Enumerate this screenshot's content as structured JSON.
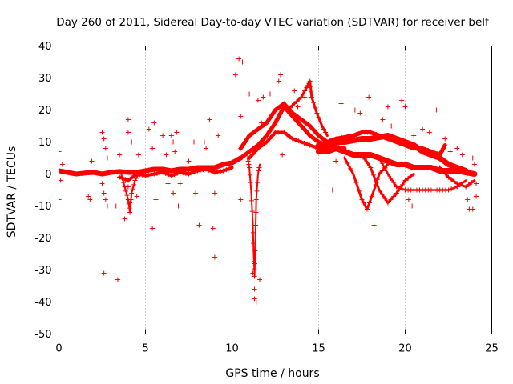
{
  "chart_data": {
    "type": "scatter",
    "title": "Day 260 of 2011, Sidereal Day-to-day VTEC variation (SDTVAR) for receiver belf",
    "xlabel": "GPS time / hours",
    "ylabel": "SDTVAR / TECUs",
    "xlim": [
      0,
      25
    ],
    "ylim": [
      -50,
      40
    ],
    "xticks": [
      0,
      5,
      10,
      15,
      20,
      25
    ],
    "yticks": [
      -50,
      -40,
      -30,
      -20,
      -10,
      0,
      10,
      20,
      30,
      40
    ],
    "xtick_labels": [
      "0",
      "5",
      "10",
      "15",
      "20",
      "25"
    ],
    "ytick_labels": [
      "-50",
      "-40",
      "-30",
      "-20",
      "-10",
      "0",
      "10",
      "20",
      "30",
      "40"
    ],
    "grid": true,
    "marker": "+",
    "color": "#ff0000",
    "dense_traces": [
      {
        "name": "baseline-early",
        "width": 6,
        "points": [
          [
            0,
            1
          ],
          [
            0.5,
            0.5
          ],
          [
            1,
            0
          ],
          [
            1.5,
            0.3
          ],
          [
            2,
            0.5
          ],
          [
            2.5,
            0
          ],
          [
            3,
            0.5
          ],
          [
            3.5,
            0.8
          ],
          [
            4,
            0.5
          ],
          [
            4.5,
            0.5
          ],
          [
            5,
            1
          ],
          [
            5.5,
            1.5
          ],
          [
            6,
            1.5
          ],
          [
            6.5,
            1
          ],
          [
            7,
            1.5
          ],
          [
            7.5,
            1.5
          ],
          [
            8,
            2
          ],
          [
            8.5,
            2
          ],
          [
            9,
            2
          ],
          [
            9.5,
            3
          ],
          [
            10,
            3.5
          ],
          [
            10.5,
            5
          ]
        ]
      },
      {
        "name": "baseline-spread",
        "width": 4,
        "points": [
          [
            3.5,
            -1
          ],
          [
            4,
            -2
          ],
          [
            4.5,
            0
          ],
          [
            5,
            -0.5
          ],
          [
            5.5,
            0
          ],
          [
            6,
            0.5
          ],
          [
            6.5,
            -0.5
          ],
          [
            7,
            0.5
          ],
          [
            7.5,
            0
          ],
          [
            8,
            1
          ],
          [
            8.5,
            1.5
          ],
          [
            9,
            0.5
          ],
          [
            9.5,
            1
          ],
          [
            10,
            2
          ]
        ]
      },
      {
        "name": "rise-a",
        "width": 5,
        "points": [
          [
            10.5,
            5
          ],
          [
            11,
            7
          ],
          [
            11.5,
            9
          ],
          [
            12,
            12
          ],
          [
            12.5,
            16
          ],
          [
            12.8,
            19
          ],
          [
            13,
            21
          ],
          [
            13.5,
            18
          ],
          [
            14,
            15
          ],
          [
            14.5,
            12
          ],
          [
            15,
            10
          ],
          [
            15.5,
            9
          ],
          [
            16,
            8.5
          ],
          [
            16.5,
            8
          ]
        ]
      },
      {
        "name": "rise-b",
        "width": 5,
        "points": [
          [
            10.5,
            8
          ],
          [
            11,
            12
          ],
          [
            11.5,
            14
          ],
          [
            12,
            16
          ],
          [
            12.5,
            20
          ],
          [
            13,
            22
          ],
          [
            13.5,
            19
          ],
          [
            14,
            17
          ],
          [
            14.5,
            15
          ],
          [
            15,
            12
          ],
          [
            15.5,
            10
          ]
        ]
      },
      {
        "name": "rise-c",
        "width": 4,
        "points": [
          [
            11,
            5
          ],
          [
            11.5,
            8
          ],
          [
            12,
            10
          ],
          [
            12.5,
            13
          ],
          [
            13,
            13
          ],
          [
            13.5,
            11
          ],
          [
            14,
            10
          ],
          [
            14.5,
            9
          ],
          [
            15,
            8
          ],
          [
            15.5,
            8
          ]
        ]
      },
      {
        "name": "peak-b",
        "width": 3,
        "points": [
          [
            13.2,
            20
          ],
          [
            13.6,
            22
          ],
          [
            14,
            24
          ],
          [
            14.3,
            27
          ],
          [
            14.5,
            29
          ],
          [
            14.6,
            24
          ],
          [
            14.9,
            19
          ],
          [
            15.2,
            15
          ],
          [
            15.5,
            12
          ]
        ]
      },
      {
        "name": "late-upper",
        "width": 7,
        "points": [
          [
            15,
            9
          ],
          [
            15.5,
            9
          ],
          [
            16,
            10
          ],
          [
            16.5,
            10
          ],
          [
            17,
            10.5
          ],
          [
            17.5,
            11
          ],
          [
            18,
            11
          ],
          [
            18.5,
            11.5
          ],
          [
            19,
            12
          ],
          [
            19.5,
            11
          ],
          [
            20,
            10
          ],
          [
            20.5,
            9
          ],
          [
            21,
            7
          ],
          [
            21.5,
            6
          ],
          [
            22,
            5
          ],
          [
            22.5,
            3
          ],
          [
            23,
            2
          ],
          [
            23.5,
            1
          ]
        ]
      },
      {
        "name": "late-lower",
        "width": 7,
        "points": [
          [
            15,
            7
          ],
          [
            15.5,
            7
          ],
          [
            16,
            8
          ],
          [
            16.5,
            7
          ],
          [
            17,
            6
          ],
          [
            17.5,
            6
          ],
          [
            18,
            6
          ],
          [
            18.5,
            5
          ],
          [
            19,
            4
          ],
          [
            19.5,
            3
          ],
          [
            20,
            3
          ],
          [
            20.5,
            2
          ],
          [
            21,
            2
          ],
          [
            21.5,
            2
          ],
          [
            22,
            1
          ],
          [
            22.5,
            1
          ],
          [
            23,
            1
          ],
          [
            23.5,
            0.5
          ],
          [
            24,
            0
          ]
        ]
      },
      {
        "name": "late-mid",
        "width": 5,
        "points": [
          [
            15.5,
            10
          ],
          [
            16,
            11
          ],
          [
            17,
            12
          ],
          [
            17.5,
            13
          ],
          [
            18,
            13
          ],
          [
            18.5,
            12
          ],
          [
            19,
            11
          ],
          [
            19.5,
            10
          ],
          [
            20,
            9
          ],
          [
            20.5,
            8
          ],
          [
            21,
            8
          ],
          [
            21.5,
            7
          ],
          [
            22,
            6
          ],
          [
            22.3,
            9
          ]
        ]
      },
      {
        "name": "dip-1",
        "width": 3,
        "points": [
          [
            16.5,
            5
          ],
          [
            17,
            0
          ],
          [
            17.5,
            -8
          ],
          [
            17.8,
            -11
          ],
          [
            18.2,
            -5
          ],
          [
            18.5,
            0
          ],
          [
            19,
            3
          ]
        ]
      },
      {
        "name": "dip-2",
        "width": 3,
        "points": [
          [
            17.5,
            6
          ],
          [
            18,
            2
          ],
          [
            18.5,
            -5
          ],
          [
            19,
            -9
          ],
          [
            19.5,
            -6
          ],
          [
            20,
            -2
          ],
          [
            20.5,
            0
          ]
        ]
      },
      {
        "name": "dip-3",
        "width": 2.5,
        "points": [
          [
            18.5,
            5
          ],
          [
            19,
            0
          ],
          [
            19.5,
            -4
          ],
          [
            20,
            -5
          ],
          [
            20.5,
            -5
          ],
          [
            21,
            -5
          ],
          [
            21.5,
            -5
          ],
          [
            22,
            -5
          ],
          [
            22.5,
            -5
          ],
          [
            23,
            -4
          ],
          [
            23.5,
            -2
          ]
        ]
      },
      {
        "name": "tail",
        "width": 3,
        "points": [
          [
            22,
            2
          ],
          [
            22.5,
            -1
          ],
          [
            23,
            -3
          ],
          [
            23.5,
            -4
          ],
          [
            24,
            -2
          ]
        ]
      },
      {
        "name": "spike-11",
        "width": 2,
        "points": [
          [
            10.9,
            5
          ],
          [
            11.0,
            2
          ],
          [
            11.1,
            -5
          ],
          [
            11.2,
            -15
          ],
          [
            11.25,
            -25
          ],
          [
            11.3,
            -32
          ],
          [
            11.35,
            -20
          ],
          [
            11.4,
            -8
          ],
          [
            11.5,
            0
          ],
          [
            11.6,
            3
          ]
        ]
      },
      {
        "name": "early-knot",
        "width": 2,
        "points": [
          [
            3.6,
            0
          ],
          [
            3.8,
            -4
          ],
          [
            4.0,
            -8
          ],
          [
            4.1,
            -12
          ],
          [
            4.2,
            -6
          ],
          [
            4.4,
            -2
          ],
          [
            4.6,
            0
          ]
        ]
      }
    ],
    "scatter_points": [
      {
        "x": 0.0,
        "y": 7
      },
      {
        "x": 0.2,
        "y": 3
      },
      {
        "x": 0.1,
        "y": -2
      },
      {
        "x": 0.0,
        "y": -8
      },
      {
        "x": 1.7,
        "y": -7
      },
      {
        "x": 1.8,
        "y": -8
      },
      {
        "x": 1.9,
        "y": 4
      },
      {
        "x": 2.5,
        "y": 13
      },
      {
        "x": 2.6,
        "y": 11
      },
      {
        "x": 2.7,
        "y": 8
      },
      {
        "x": 2.8,
        "y": 5
      },
      {
        "x": 2.5,
        "y": -3
      },
      {
        "x": 2.6,
        "y": -6
      },
      {
        "x": 2.7,
        "y": -8
      },
      {
        "x": 2.8,
        "y": -10
      },
      {
        "x": 2.6,
        "y": -31
      },
      {
        "x": 3.4,
        "y": -33
      },
      {
        "x": 3.5,
        "y": 6
      },
      {
        "x": 3.3,
        "y": -10
      },
      {
        "x": 3.8,
        "y": -14
      },
      {
        "x": 4.0,
        "y": 17
      },
      {
        "x": 4.0,
        "y": 13
      },
      {
        "x": 4.2,
        "y": 10
      },
      {
        "x": 4.0,
        "y": -4
      },
      {
        "x": 4.1,
        "y": -9
      },
      {
        "x": 4.5,
        "y": -7
      },
      {
        "x": 4.6,
        "y": 6
      },
      {
        "x": 5.2,
        "y": 14
      },
      {
        "x": 5.5,
        "y": 16
      },
      {
        "x": 5.4,
        "y": 8
      },
      {
        "x": 5.6,
        "y": -8
      },
      {
        "x": 5.4,
        "y": -17
      },
      {
        "x": 6.0,
        "y": 12
      },
      {
        "x": 6.2,
        "y": 6
      },
      {
        "x": 6.3,
        "y": -3
      },
      {
        "x": 6.5,
        "y": 12
      },
      {
        "x": 6.6,
        "y": 10
      },
      {
        "x": 6.8,
        "y": 13
      },
      {
        "x": 6.7,
        "y": 7
      },
      {
        "x": 6.6,
        "y": -6
      },
      {
        "x": 6.9,
        "y": -10
      },
      {
        "x": 7.0,
        "y": -3
      },
      {
        "x": 7.5,
        "y": 4
      },
      {
        "x": 7.8,
        "y": 10
      },
      {
        "x": 7.9,
        "y": -6
      },
      {
        "x": 8.1,
        "y": -16
      },
      {
        "x": 8.4,
        "y": 10
      },
      {
        "x": 8.5,
        "y": 8
      },
      {
        "x": 8.7,
        "y": 17
      },
      {
        "x": 8.9,
        "y": -17
      },
      {
        "x": 9.0,
        "y": -26
      },
      {
        "x": 9.2,
        "y": 12
      },
      {
        "x": 9.0,
        "y": -6
      },
      {
        "x": 10.2,
        "y": 31
      },
      {
        "x": 10.4,
        "y": 36
      },
      {
        "x": 10.6,
        "y": 35
      },
      {
        "x": 10.5,
        "y": -8
      },
      {
        "x": 10.5,
        "y": 18
      },
      {
        "x": 11.0,
        "y": 25
      },
      {
        "x": 11.2,
        "y": -31
      },
      {
        "x": 11.3,
        "y": -36
      },
      {
        "x": 11.3,
        "y": -39
      },
      {
        "x": 11.4,
        "y": -40
      },
      {
        "x": 11.6,
        "y": -33
      },
      {
        "x": 11.5,
        "y": 23
      },
      {
        "x": 11.8,
        "y": 24
      },
      {
        "x": 11.7,
        "y": 16
      },
      {
        "x": 12.2,
        "y": 25
      },
      {
        "x": 12.7,
        "y": 29
      },
      {
        "x": 12.8,
        "y": 31
      },
      {
        "x": 12.9,
        "y": 6
      },
      {
        "x": 13.6,
        "y": 26
      },
      {
        "x": 13.8,
        "y": 21
      },
      {
        "x": 14.2,
        "y": 24
      },
      {
        "x": 15.8,
        "y": -5
      },
      {
        "x": 16.3,
        "y": 22
      },
      {
        "x": 16.0,
        "y": 4
      },
      {
        "x": 17.1,
        "y": 20
      },
      {
        "x": 17.4,
        "y": 19
      },
      {
        "x": 17.9,
        "y": 24
      },
      {
        "x": 18.2,
        "y": -16
      },
      {
        "x": 18.7,
        "y": 17
      },
      {
        "x": 19.0,
        "y": 21
      },
      {
        "x": 19.2,
        "y": 15
      },
      {
        "x": 19.5,
        "y": -6
      },
      {
        "x": 19.8,
        "y": 23
      },
      {
        "x": 20.0,
        "y": 21
      },
      {
        "x": 20.2,
        "y": -8
      },
      {
        "x": 20.4,
        "y": -10
      },
      {
        "x": 20.5,
        "y": 12
      },
      {
        "x": 21.0,
        "y": 14
      },
      {
        "x": 21.4,
        "y": 13
      },
      {
        "x": 21.8,
        "y": 20
      },
      {
        "x": 22.3,
        "y": 11
      },
      {
        "x": 22.6,
        "y": 7
      },
      {
        "x": 23.0,
        "y": 8
      },
      {
        "x": 23.3,
        "y": 6
      },
      {
        "x": 23.6,
        "y": -8
      },
      {
        "x": 23.7,
        "y": -11
      },
      {
        "x": 23.9,
        "y": -11
      },
      {
        "x": 23.9,
        "y": 5
      },
      {
        "x": 24.0,
        "y": 3
      },
      {
        "x": 24.1,
        "y": -3
      },
      {
        "x": 24.1,
        "y": -7
      }
    ]
  }
}
